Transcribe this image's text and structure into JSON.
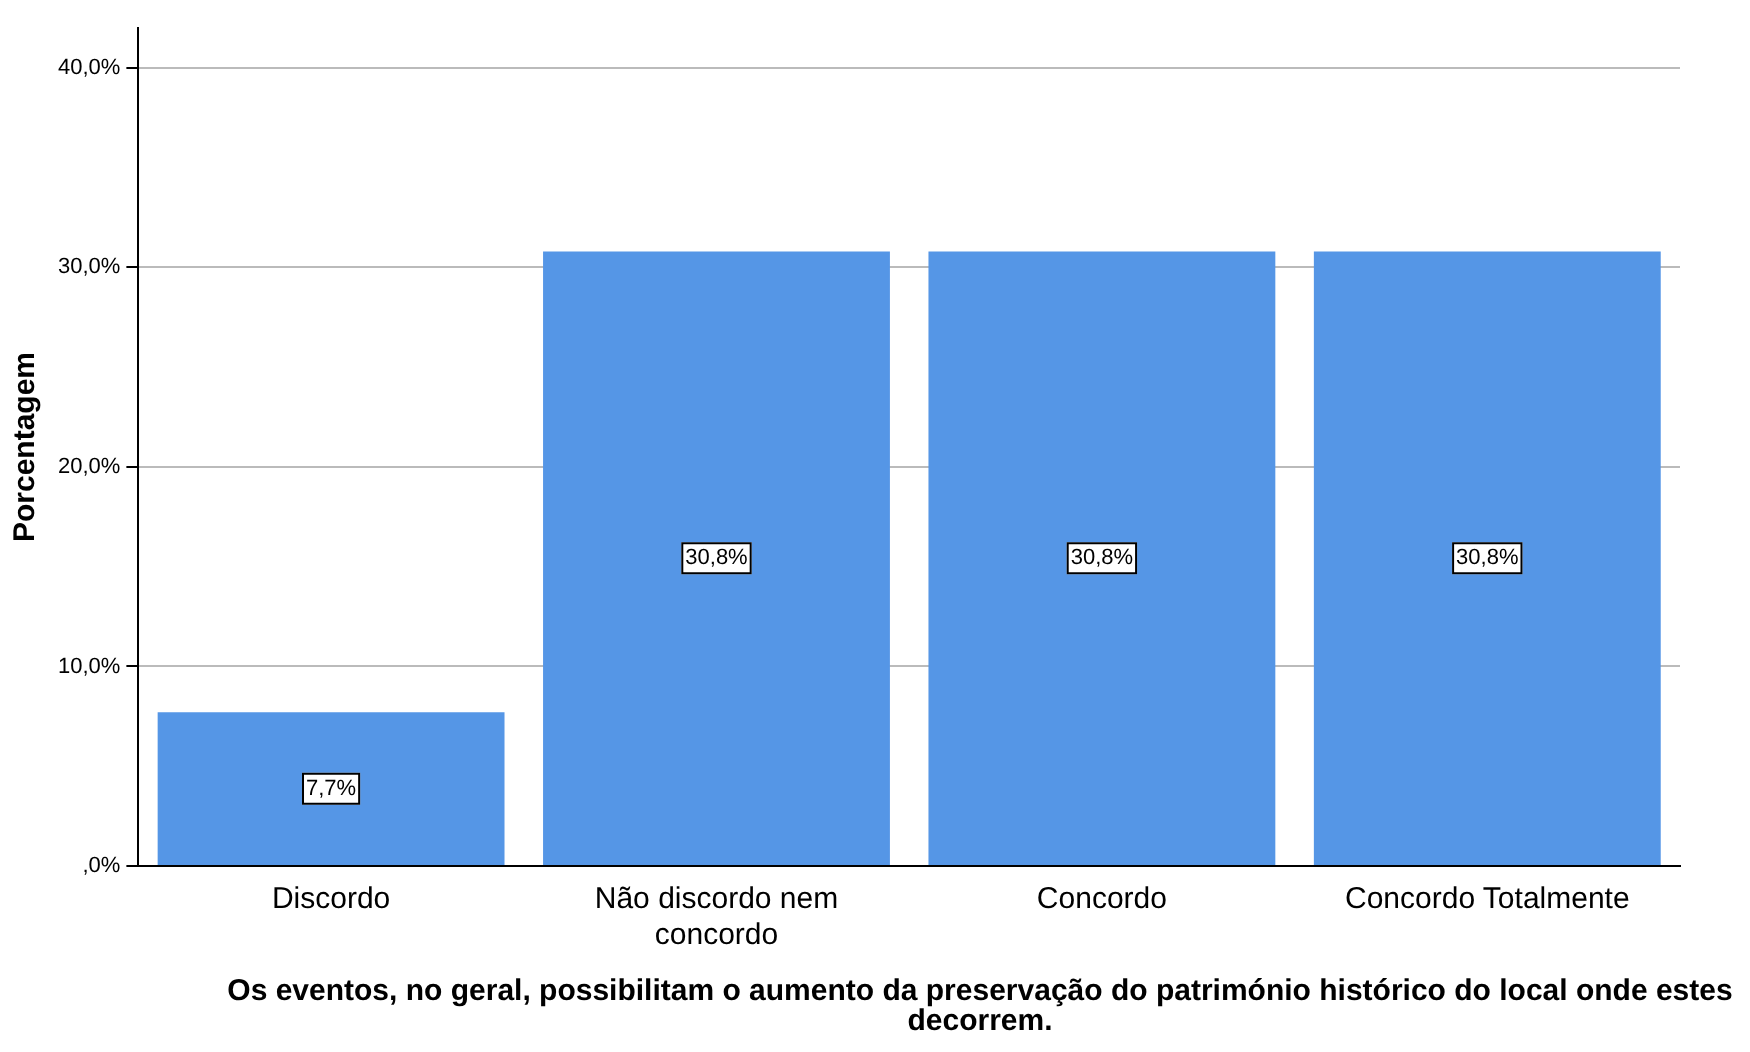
{
  "chart_data": {
    "type": "bar",
    "ylabel": "Porcentagem",
    "xlabel": "Os eventos, no geral, possibilitam o aumento da preservação do património histórico do local onde estes decorrem.",
    "categories": [
      "Discordo",
      "Não discordo nem concordo",
      "Concordo",
      "Concordo Totalmente"
    ],
    "values": [
      7.7,
      30.8,
      30.8,
      30.8
    ],
    "value_labels": [
      "7,7%",
      "30,8%",
      "30,8%",
      "30,8%"
    ],
    "color": "#5596e6",
    "ylim": [
      0,
      42
    ],
    "yticks": [
      {
        "value": 0,
        "label": ",0%"
      },
      {
        "value": 10,
        "label": "10,0%"
      },
      {
        "value": 20,
        "label": "20,0%"
      },
      {
        "value": 30,
        "label": "30,0%"
      },
      {
        "value": 40,
        "label": "40,0%"
      }
    ],
    "grid": "y",
    "legend": false
  }
}
